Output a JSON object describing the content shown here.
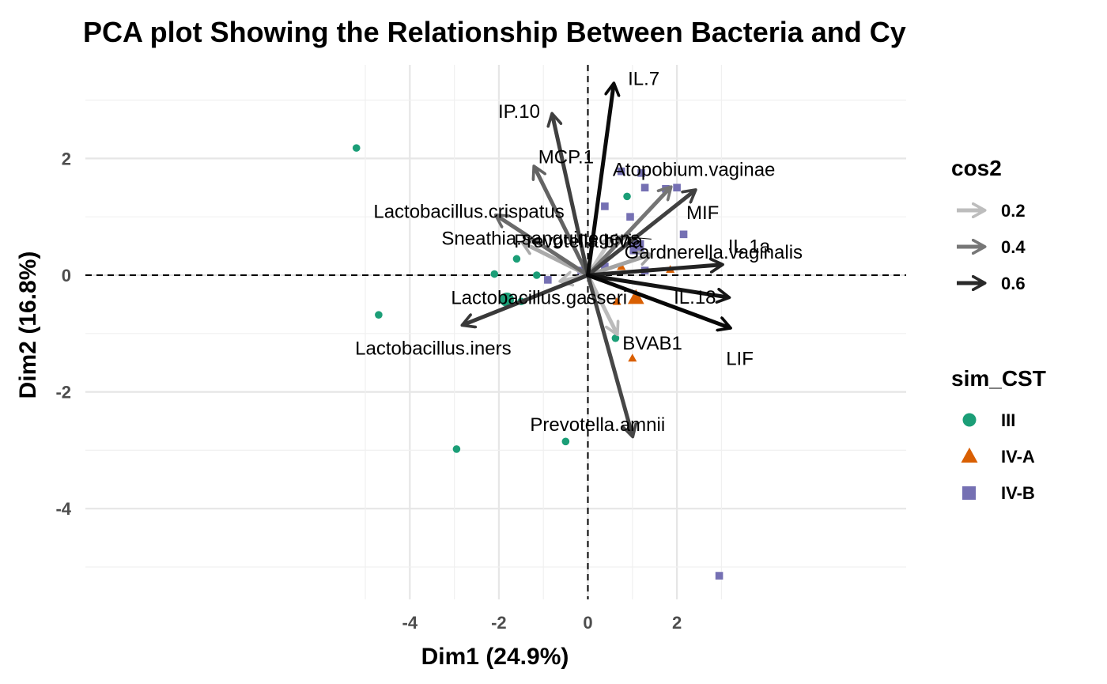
{
  "chart_data": {
    "type": "scatter",
    "subtype": "pca-biplot",
    "title": "PCA plot Showing the Relationship Between Bacteria and Cy",
    "xlabel": "Dim1 (24.9%)",
    "ylabel": "Dim2 (16.8%)",
    "xlim": [
      -5.7,
      3.6
    ],
    "ylim": [
      -5.6,
      3.6
    ],
    "xticks": [
      -4,
      -2,
      0,
      2
    ],
    "yticks": [
      -4,
      -2,
      0,
      2
    ],
    "grid": true,
    "reference_lines": {
      "x": 0,
      "y": 0,
      "style": "dashed"
    },
    "legend_position": "right",
    "legends": {
      "cos2": {
        "title": "cos2",
        "entries": [
          "0.2",
          "0.4",
          "0.6"
        ]
      },
      "group": {
        "title": "sim_CST",
        "entries": [
          "III",
          "IV-A",
          "IV-B"
        ]
      }
    },
    "groups": [
      {
        "name": "III",
        "color": "#1b9e77",
        "shape": "circle"
      },
      {
        "name": "IV-A",
        "color": "#d95f02",
        "shape": "triangle"
      },
      {
        "name": "IV-B",
        "color": "#7570b3",
        "shape": "square"
      }
    ],
    "variables": [
      {
        "name": "IL.7",
        "x": 0.58,
        "y": 3.27,
        "cos2": 0.65
      },
      {
        "name": "IP.10",
        "x": -0.8,
        "y": 2.75,
        "cos2": 0.5
      },
      {
        "name": "MCP.1",
        "x": -1.2,
        "y": 1.85,
        "cos2": 0.4
      },
      {
        "name": "Lactobacillus.crispatus",
        "x": -2.05,
        "y": 1.02,
        "cos2": 0.38
      },
      {
        "name": "Sneathia.sanguinegens",
        "x": -1.45,
        "y": 0.55,
        "cos2": 0.2
      },
      {
        "name": "Lactobacillus.iners",
        "x": -2.8,
        "y": -0.85,
        "cos2": 0.52
      },
      {
        "name": "Lactobacillus.gasseri",
        "x": -0.6,
        "y": -0.1,
        "cos2": 0.15
      },
      {
        "name": "Atopobium.vaginae",
        "x": 1.85,
        "y": 1.5,
        "cos2": 0.35
      },
      {
        "name": "MIF",
        "x": 2.4,
        "y": 1.45,
        "cos2": 0.5
      },
      {
        "name": "Prevotella.bivia",
        "x": 0.55,
        "y": 0.65,
        "cos2": 0.12
      },
      {
        "name": "Gardnerella.vaginalis",
        "x": 1.4,
        "y": 0.35,
        "cos2": 0.22
      },
      {
        "name": "IL.1a",
        "x": 3.0,
        "y": 0.18,
        "cos2": 0.58
      },
      {
        "name": "IL.18",
        "x": 3.15,
        "y": -0.38,
        "cos2": 0.62
      },
      {
        "name": "LIF",
        "x": 3.18,
        "y": -0.9,
        "cos2": 0.66
      },
      {
        "name": "BVAB1",
        "x": 0.65,
        "y": -1.0,
        "cos2": 0.15
      },
      {
        "name": "Prevotella.amnii",
        "x": 1.0,
        "y": -2.75,
        "cos2": 0.48
      }
    ],
    "individuals": [
      {
        "group": "III",
        "x": -5.2,
        "y": 2.18
      },
      {
        "group": "III",
        "x": -4.7,
        "y": -0.68
      },
      {
        "group": "III",
        "x": -2.95,
        "y": -2.98
      },
      {
        "group": "III",
        "x": -2.1,
        "y": 0.02
      },
      {
        "group": "III",
        "x": -1.6,
        "y": 0.28
      },
      {
        "group": "III",
        "x": -1.5,
        "y": -0.45
      },
      {
        "group": "III",
        "x": -1.15,
        "y": 0.0
      },
      {
        "group": "III",
        "x": -0.5,
        "y": -2.85
      },
      {
        "group": "III",
        "x": 0.88,
        "y": 1.35
      },
      {
        "group": "III",
        "x": 0.62,
        "y": -1.08
      },
      {
        "group": "IV-A",
        "x": 0.75,
        "y": 0.15
      },
      {
        "group": "IV-A",
        "x": 0.65,
        "y": -0.45
      },
      {
        "group": "IV-A",
        "x": 1.1,
        "y": -0.38
      },
      {
        "group": "IV-A",
        "x": 1.85,
        "y": 0.1
      },
      {
        "group": "IV-A",
        "x": 1.0,
        "y": -1.42
      },
      {
        "group": "IV-B",
        "x": -0.9,
        "y": -0.08
      },
      {
        "group": "IV-B",
        "x": -0.15,
        "y": 0.08
      },
      {
        "group": "IV-B",
        "x": 0.38,
        "y": 0.15
      },
      {
        "group": "IV-B",
        "x": 0.38,
        "y": 1.18
      },
      {
        "group": "IV-B",
        "x": 0.75,
        "y": 1.78
      },
      {
        "group": "IV-B",
        "x": 0.95,
        "y": 1.0
      },
      {
        "group": "IV-B",
        "x": 1.2,
        "y": 1.75
      },
      {
        "group": "IV-B",
        "x": 1.28,
        "y": 1.5
      },
      {
        "group": "IV-B",
        "x": 1.75,
        "y": 1.48
      },
      {
        "group": "IV-B",
        "x": 2.0,
        "y": 1.5
      },
      {
        "group": "IV-B",
        "x": 2.15,
        "y": 0.7
      },
      {
        "group": "IV-B",
        "x": 1.28,
        "y": 0.08
      },
      {
        "group": "IV-B",
        "x": 2.95,
        "y": -5.15
      }
    ],
    "group_centroids": [
      {
        "group": "III",
        "x": -1.82,
        "y": -0.42
      },
      {
        "group": "IV-A",
        "x": 1.08,
        "y": -0.38
      },
      {
        "group": "IV-B",
        "x": 1.1,
        "y": 0.48
      }
    ]
  }
}
